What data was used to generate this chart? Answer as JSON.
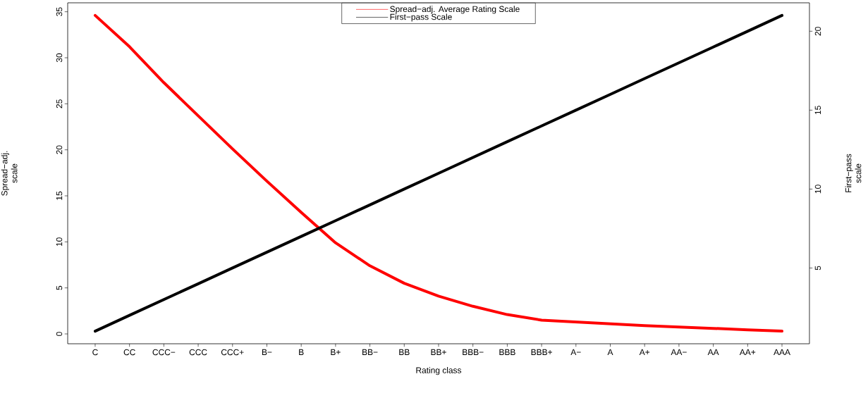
{
  "chart_data": {
    "type": "line",
    "xlabel": "Rating class",
    "ylabel": "Spread−adj. scale",
    "y2label": "First−pass scale",
    "categories": [
      "C",
      "CC",
      "CCC−",
      "CCC",
      "CCC+",
      "B−",
      "B",
      "B+",
      "BB−",
      "BB",
      "BB+",
      "BBB−",
      "BBB",
      "BBB+",
      "A−",
      "A",
      "A+",
      "AA−",
      "AA",
      "AA+",
      "AAA"
    ],
    "series": [
      {
        "name": "Spread−adj. Average Rating Scale",
        "color": "#ff0000",
        "values": [
          34.6,
          31.2,
          27.3,
          23.7,
          20.1,
          16.6,
          13.2,
          9.9,
          7.4,
          5.5,
          4.1,
          3.0,
          2.1,
          1.5,
          1.3,
          1.1,
          0.9,
          0.75,
          0.6,
          0.45,
          0.3
        ]
      },
      {
        "name": "First−pass Scale",
        "color": "#000000",
        "axis": "y2",
        "values": [
          1,
          2,
          3,
          4,
          5,
          6,
          7,
          8,
          9,
          10,
          11,
          12,
          13,
          14,
          15,
          16,
          17,
          18,
          19,
          20,
          21
        ]
      }
    ],
    "ylim": [
      -1.07,
      35.97
    ],
    "yticks": [
      0,
      5,
      10,
      15,
      20,
      25,
      30,
      35
    ],
    "y2lim": [
      0.2,
      21.8
    ],
    "y2ticks": [
      5,
      10,
      15,
      20
    ],
    "legend": "top",
    "line_style": "solid",
    "marker": "none"
  }
}
